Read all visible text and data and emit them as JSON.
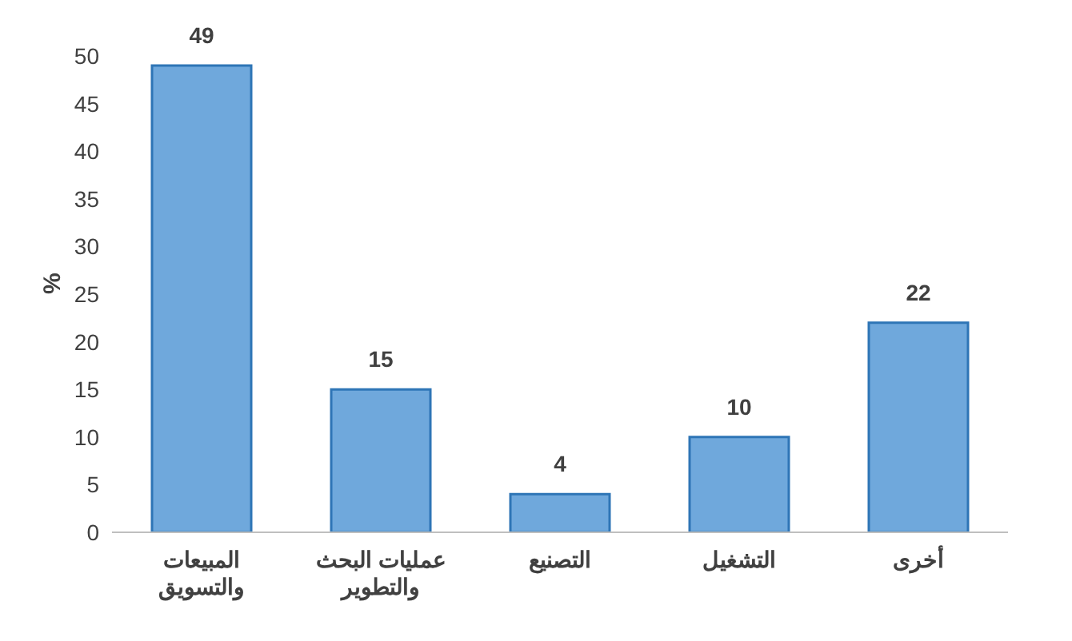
{
  "chart_data": {
    "type": "bar",
    "ylabel": "%",
    "categories": [
      "المبيعات والتسويق",
      "عمليات البحث والتطوير",
      "التصنيع",
      "التشغيل",
      "أخرى"
    ],
    "values": [
      49,
      15,
      4,
      10,
      22
    ],
    "color": "#6fa8dc",
    "ylim": [
      0,
      50
    ],
    "yticks": [
      0,
      5,
      10,
      15,
      20,
      25,
      30,
      35,
      40,
      45,
      50
    ],
    "data_labels": true,
    "grid": false,
    "legend": false
  }
}
